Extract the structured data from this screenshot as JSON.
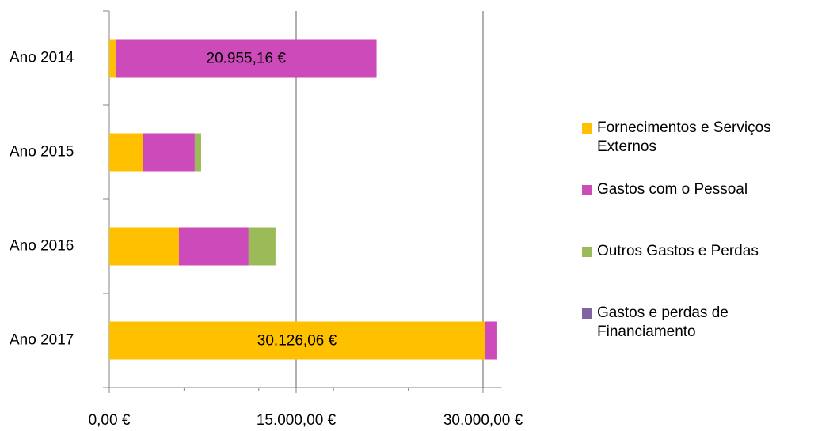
{
  "chart_data": {
    "type": "stacked-barh",
    "categories": [
      "Ano 2014",
      "Ano 2015",
      "Ano 2016",
      "Ano 2017"
    ],
    "series": [
      {
        "name": "Fornecimentos e Serviços Externos",
        "color": "#ffc000",
        "values": [
          500,
          2730,
          5590,
          30126.06
        ],
        "value_labels": [
          null,
          null,
          null,
          "30.126,06 €"
        ]
      },
      {
        "name": "Gastos com o Pessoal",
        "color": "#cc4aba",
        "values": [
          20955.16,
          4130,
          5590,
          950
        ],
        "value_labels": [
          "20.955,16 €",
          null,
          null,
          null
        ]
      },
      {
        "name": "Outros Gastos e Perdas",
        "color": "#9bbb59",
        "values": [
          0,
          510,
          2160,
          0
        ]
      },
      {
        "name": "Gastos e perdas de Financiamento",
        "color": "#8064a2",
        "values": [
          0,
          0,
          0,
          0
        ]
      }
    ],
    "xlim": [
      0,
      31500
    ],
    "xticks": [
      {
        "value": 0,
        "label": "0,00 €"
      },
      {
        "value": 15000,
        "label": "15.000,00 €"
      },
      {
        "value": 30000,
        "label": "30.000,00 €"
      }
    ],
    "xminorticks": [
      6000,
      12000,
      18000,
      24000
    ],
    "grid": true,
    "legend": "right"
  }
}
